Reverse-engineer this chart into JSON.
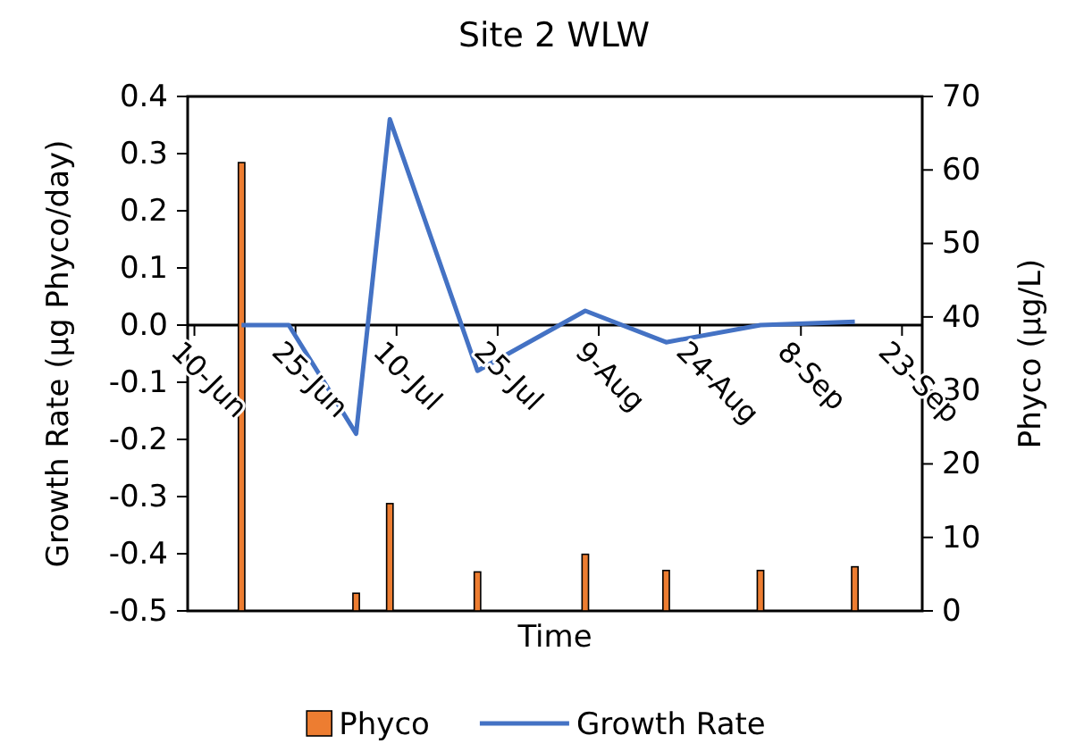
{
  "chart_data": {
    "type": "line",
    "title": "Site 2 WLW",
    "xlabel": "Time",
    "ylabel": "Growth Rate (µg Phyco/day)",
    "y2label": "Phyco (µg/L)",
    "xlim": [
      "--06-09",
      "--09-26"
    ],
    "xticks": [
      {
        "value": "--06-10",
        "label": "10-Jun"
      },
      {
        "value": "--06-25",
        "label": "25-Jun"
      },
      {
        "value": "--07-10",
        "label": "10-Jul"
      },
      {
        "value": "--07-25",
        "label": "25-Jul"
      },
      {
        "value": "--08-09",
        "label": "9-Aug"
      },
      {
        "value": "--08-24",
        "label": "24-Aug"
      },
      {
        "value": "--09-08",
        "label": "8-Sep"
      },
      {
        "value": "--09-23",
        "label": "23-Sep"
      }
    ],
    "ylim": [
      -0.5,
      0.4
    ],
    "yticks": [
      {
        "value": -0.5,
        "label": "-0.5"
      },
      {
        "value": -0.4,
        "label": "-0.4"
      },
      {
        "value": -0.3,
        "label": "-0.3"
      },
      {
        "value": -0.2,
        "label": "-0.2"
      },
      {
        "value": -0.1,
        "label": "-0.1"
      },
      {
        "value": 0,
        "label": "0.0"
      },
      {
        "value": 0.1,
        "label": "0.1"
      },
      {
        "value": 0.2,
        "label": "0.2"
      },
      {
        "value": 0.3,
        "label": "0.3"
      },
      {
        "value": 0.4,
        "label": "0.4"
      }
    ],
    "y2lim": [
      0,
      70
    ],
    "y2ticks": [
      0,
      10,
      20,
      30,
      40,
      50,
      60,
      70
    ],
    "legend": "bottom",
    "series": [
      {
        "name": "Phyco",
        "type": "bar",
        "axis": "y2",
        "color": "#ed7d31",
        "x": [
          "--06-17",
          "--07-04",
          "--07-09",
          "--07-22",
          "--08-07",
          "--08-19",
          "--09-02",
          "--09-16"
        ],
        "values": [
          61,
          2.4,
          14.6,
          5.3,
          7.7,
          5.5,
          5.5,
          6.0
        ]
      },
      {
        "name": "Growth Rate",
        "color": "#4472c4",
        "x": [
          "--06-17",
          "--06-24",
          "--07-04",
          "--07-09",
          "--07-22",
          "--08-07",
          "--08-19",
          "--09-02",
          "--09-16"
        ],
        "values": [
          0,
          0,
          -0.19,
          0.36,
          -0.08,
          0.025,
          -0.03,
          0,
          0.006
        ]
      }
    ]
  }
}
